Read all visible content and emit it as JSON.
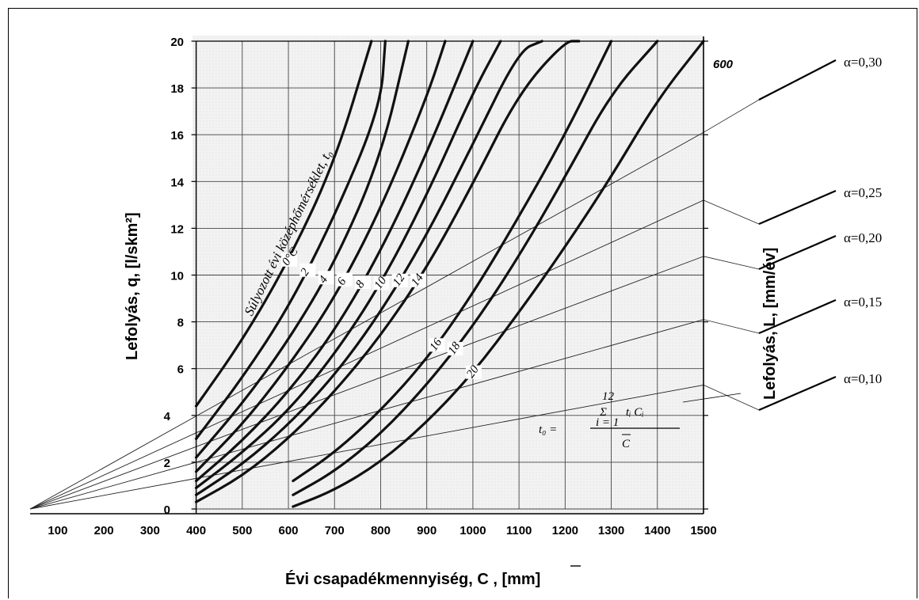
{
  "chart_data": {
    "type": "line",
    "xlabel": "Évi csapadékmennyiség, C , [mm]",
    "ylabel": "Lefolyás, q, [l/skm²]",
    "y2label": "Lefolyás, L, [mm/év]",
    "x_ticks": [
      "100",
      "200",
      "300",
      "400",
      "500",
      "600",
      "700",
      "800",
      "900",
      "1000",
      "1100",
      "1200",
      "1300",
      "1400",
      "1500"
    ],
    "y_ticks": [
      "0",
      "2",
      "4",
      "6",
      "8",
      "10",
      "12",
      "14",
      "16",
      "18",
      "20"
    ],
    "y2_tick_top": "600",
    "xlim": [
      40,
      1500
    ],
    "ylim": [
      0,
      20
    ],
    "grid": true,
    "family_label": "Súlyozott évi középhőmérséklet, t₀",
    "temperature_curves": [
      {
        "name": "0°C",
        "x": [
          400,
          500,
          600,
          700,
          780
        ],
        "y": [
          4.4,
          7.2,
          10.6,
          14.8,
          20.0
        ]
      },
      {
        "name": "2",
        "x": [
          400,
          500,
          600,
          700,
          800,
          810
        ],
        "y": [
          3.0,
          5.6,
          8.6,
          12.5,
          17.2,
          20.0
        ]
      },
      {
        "name": "4",
        "x": [
          400,
          500,
          600,
          700,
          800,
          860
        ],
        "y": [
          2.2,
          4.5,
          7.2,
          10.5,
          15.0,
          20.0
        ]
      },
      {
        "name": "6",
        "x": [
          400,
          500,
          600,
          700,
          800,
          900,
          940
        ],
        "y": [
          1.6,
          3.6,
          6.1,
          9.0,
          12.8,
          17.6,
          20.0
        ]
      },
      {
        "name": "8",
        "x": [
          400,
          500,
          600,
          700,
          800,
          900,
          1000
        ],
        "y": [
          1.2,
          2.9,
          5.0,
          7.6,
          11.0,
          15.2,
          20.0
        ]
      },
      {
        "name": "10",
        "x": [
          400,
          500,
          600,
          700,
          800,
          900,
          1000,
          1060
        ],
        "y": [
          0.9,
          2.4,
          4.2,
          6.6,
          9.6,
          13.4,
          17.8,
          20.0
        ]
      },
      {
        "name": "12",
        "x": [
          400,
          500,
          600,
          700,
          800,
          900,
          1000,
          1100,
          1150
        ],
        "y": [
          0.6,
          1.9,
          3.6,
          5.7,
          8.4,
          11.7,
          15.6,
          19.6,
          20.0
        ]
      },
      {
        "name": "14",
        "x": [
          400,
          500,
          600,
          700,
          800,
          900,
          1000,
          1100,
          1200,
          1230
        ],
        "y": [
          0.3,
          1.4,
          3.0,
          5.0,
          7.4,
          10.3,
          13.9,
          17.8,
          21.6,
          20.0
        ]
      },
      {
        "name": "16",
        "x": [
          610,
          700,
          800,
          900,
          1000,
          1100,
          1200,
          1300
        ],
        "y": [
          1.2,
          2.4,
          4.2,
          6.4,
          9.2,
          12.5,
          16.0,
          20.0
        ]
      },
      {
        "name": "18",
        "x": [
          610,
          700,
          800,
          900,
          1000,
          1100,
          1200,
          1300,
          1400
        ],
        "y": [
          0.6,
          1.6,
          3.2,
          5.3,
          7.8,
          10.8,
          14.2,
          17.8,
          20.0
        ]
      },
      {
        "name": "20",
        "x": [
          610,
          700,
          800,
          900,
          1000,
          1100,
          1200,
          1300,
          1400,
          1500
        ],
        "y": [
          0.1,
          0.8,
          2.0,
          3.7,
          5.8,
          8.4,
          11.2,
          14.2,
          17.5,
          20.0
        ]
      }
    ],
    "alpha_lines": [
      {
        "name": "α=0,30",
        "x": [
          40,
          1500
        ],
        "y": [
          0,
          16.1
        ]
      },
      {
        "name": "α=0,25",
        "x": [
          40,
          1500
        ],
        "y": [
          0,
          13.2
        ]
      },
      {
        "name": "α=0,20",
        "x": [
          40,
          1500
        ],
        "y": [
          0,
          10.8
        ]
      },
      {
        "name": "α=0,15",
        "x": [
          40,
          1500
        ],
        "y": [
          0,
          8.1
        ]
      },
      {
        "name": "α=0,10",
        "x": [
          40,
          1500
        ],
        "y": [
          0,
          5.3
        ]
      }
    ],
    "formula": {
      "lhs": "t₀ =",
      "sum_top": "12",
      "sum_sym": "Σ",
      "sum_bottom": "i = 1",
      "numerator": "tᵢ Cᵢ",
      "denominator": "C"
    }
  }
}
